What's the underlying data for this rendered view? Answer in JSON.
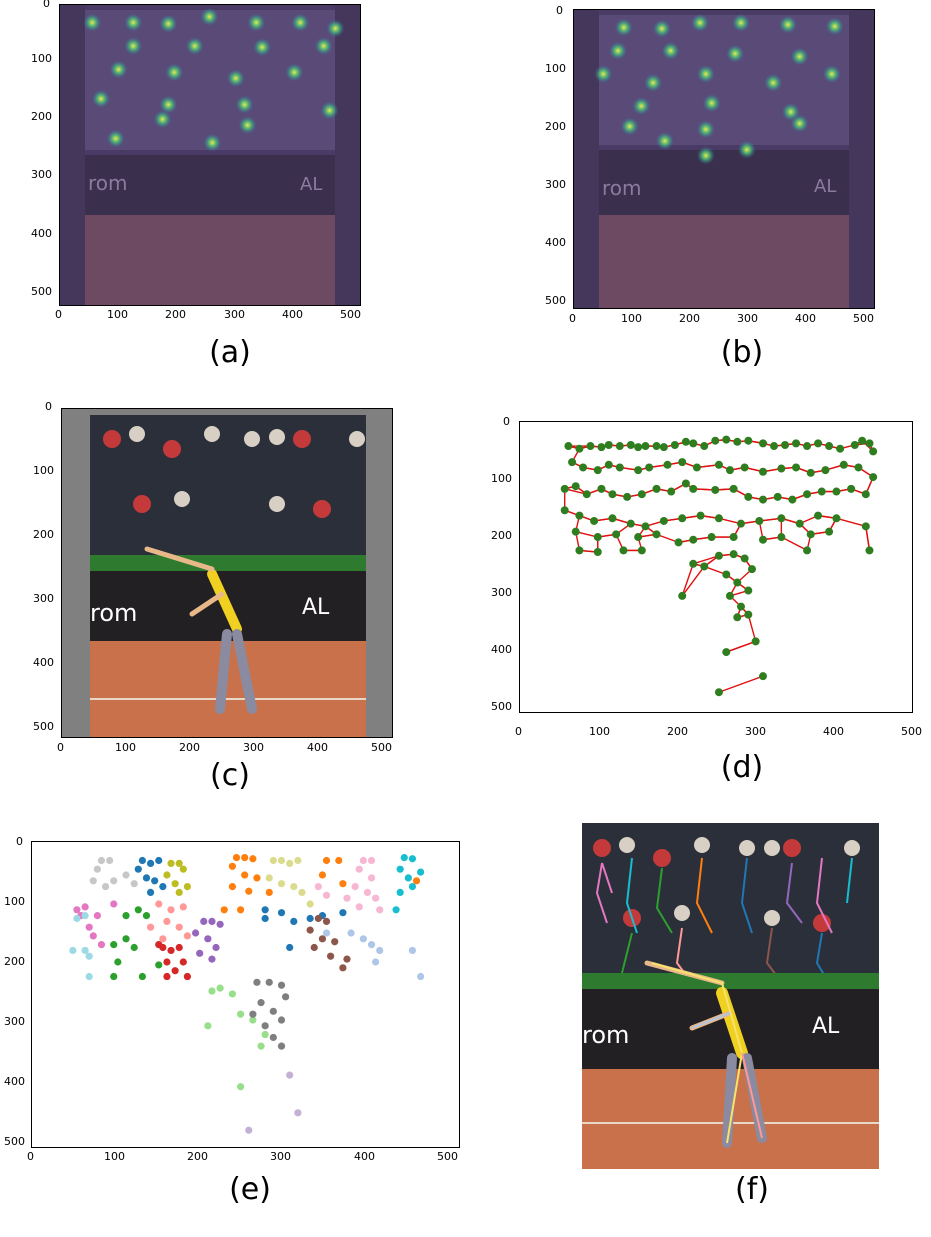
{
  "captions": [
    "(a)",
    "(b)",
    "(c)",
    "(d)",
    "(e)",
    "(f)"
  ],
  "axes": {
    "x_ticks": [
      "0",
      "100",
      "200",
      "300",
      "400",
      "500"
    ],
    "y_ticks_heatmap": [
      "0",
      "100",
      "200",
      "300",
      "400",
      "500"
    ],
    "y_ticks_plot": [
      "0",
      "100",
      "200",
      "300",
      "400",
      "500"
    ]
  },
  "image_text": {
    "banner_left": "rom",
    "banner_right": "AL"
  },
  "colors": {
    "heatmap_overlay": "#4b2a6e",
    "heat_spot": "#b8e04a",
    "keypoint": "#2e7d1f",
    "limb": "#e01010",
    "court": "#c8714a",
    "banner": "#2a2530",
    "gray_pad": "#808080"
  },
  "chart_data": [
    {
      "panel": "d",
      "type": "scatter",
      "xlim": [
        0,
        512
      ],
      "ylim": [
        512,
        0
      ],
      "points": [
        [
          55,
          30
        ],
        [
          70,
          35
        ],
        [
          85,
          30
        ],
        [
          100,
          32
        ],
        [
          110,
          28
        ],
        [
          125,
          30
        ],
        [
          140,
          28
        ],
        [
          150,
          32
        ],
        [
          160,
          30
        ],
        [
          175,
          30
        ],
        [
          185,
          32
        ],
        [
          200,
          28
        ],
        [
          215,
          22
        ],
        [
          225,
          25
        ],
        [
          240,
          30
        ],
        [
          255,
          20
        ],
        [
          270,
          18
        ],
        [
          285,
          22
        ],
        [
          300,
          20
        ],
        [
          320,
          25
        ],
        [
          335,
          30
        ],
        [
          350,
          28
        ],
        [
          365,
          25
        ],
        [
          380,
          30
        ],
        [
          395,
          25
        ],
        [
          410,
          30
        ],
        [
          425,
          35
        ],
        [
          445,
          28
        ],
        [
          455,
          20
        ],
        [
          465,
          25
        ],
        [
          470,
          40
        ],
        [
          60,
          60
        ],
        [
          75,
          70
        ],
        [
          95,
          75
        ],
        [
          110,
          65
        ],
        [
          125,
          70
        ],
        [
          150,
          75
        ],
        [
          165,
          70
        ],
        [
          190,
          65
        ],
        [
          210,
          60
        ],
        [
          230,
          70
        ],
        [
          260,
          65
        ],
        [
          275,
          75
        ],
        [
          295,
          70
        ],
        [
          320,
          78
        ],
        [
          345,
          72
        ],
        [
          365,
          70
        ],
        [
          385,
          80
        ],
        [
          405,
          75
        ],
        [
          430,
          65
        ],
        [
          450,
          70
        ],
        [
          470,
          88
        ],
        [
          50,
          110
        ],
        [
          65,
          105
        ],
        [
          80,
          120
        ],
        [
          100,
          110
        ],
        [
          115,
          120
        ],
        [
          135,
          125
        ],
        [
          155,
          120
        ],
        [
          175,
          110
        ],
        [
          195,
          115
        ],
        [
          215,
          100
        ],
        [
          225,
          110
        ],
        [
          255,
          112
        ],
        [
          280,
          110
        ],
        [
          300,
          125
        ],
        [
          320,
          130
        ],
        [
          340,
          125
        ],
        [
          360,
          130
        ],
        [
          380,
          120
        ],
        [
          400,
          115
        ],
        [
          420,
          115
        ],
        [
          440,
          110
        ],
        [
          460,
          120
        ],
        [
          50,
          150
        ],
        [
          70,
          160
        ],
        [
          90,
          170
        ],
        [
          115,
          165
        ],
        [
          140,
          175
        ],
        [
          160,
          180
        ],
        [
          185,
          170
        ],
        [
          210,
          165
        ],
        [
          235,
          160
        ],
        [
          260,
          165
        ],
        [
          290,
          175
        ],
        [
          315,
          170
        ],
        [
          345,
          165
        ],
        [
          370,
          175
        ],
        [
          395,
          160
        ],
        [
          420,
          165
        ],
        [
          460,
          180
        ],
        [
          65,
          190
        ],
        [
          95,
          200
        ],
        [
          120,
          195
        ],
        [
          150,
          200
        ],
        [
          175,
          195
        ],
        [
          205,
          210
        ],
        [
          225,
          205
        ],
        [
          250,
          200
        ],
        [
          280,
          200
        ],
        [
          320,
          205
        ],
        [
          345,
          200
        ],
        [
          385,
          195
        ],
        [
          410,
          190
        ],
        [
          70,
          225
        ],
        [
          95,
          228
        ],
        [
          130,
          225
        ],
        [
          155,
          225
        ],
        [
          380,
          225
        ],
        [
          465,
          225
        ],
        [
          260,
          235
        ],
        [
          280,
          232
        ],
        [
          295,
          240
        ],
        [
          305,
          260
        ],
        [
          270,
          270
        ],
        [
          285,
          285
        ],
        [
          300,
          300
        ],
        [
          275,
          310
        ],
        [
          290,
          330
        ],
        [
          300,
          345
        ],
        [
          285,
          350
        ],
        [
          310,
          395
        ],
        [
          270,
          415
        ],
        [
          320,
          460
        ],
        [
          260,
          490
        ],
        [
          210,
          310
        ],
        [
          240,
          255
        ],
        [
          225,
          250
        ]
      ]
    },
    {
      "panel": "e",
      "type": "scatter",
      "xlim": [
        0,
        512
      ],
      "ylim": [
        512,
        0
      ],
      "series": [
        {
          "color": "#c7c7c7",
          "points": [
            [
              80,
              25
            ],
            [
              90,
              25
            ],
            [
              75,
              40
            ],
            [
              70,
              60
            ],
            [
              85,
              70
            ],
            [
              95,
              60
            ],
            [
              110,
              50
            ],
            [
              120,
              65
            ]
          ]
        },
        {
          "color": "#1f77b4",
          "points": [
            [
              130,
              25
            ],
            [
              140,
              30
            ],
            [
              150,
              25
            ],
            [
              125,
              40
            ],
            [
              135,
              55
            ],
            [
              145,
              60
            ],
            [
              155,
              70
            ],
            [
              140,
              80
            ],
            [
              280,
              110
            ],
            [
              300,
              115
            ],
            [
              315,
              130
            ],
            [
              335,
              125
            ],
            [
              350,
              120
            ],
            [
              280,
              125
            ],
            [
              310,
              175
            ],
            [
              375,
              115
            ]
          ]
        },
        {
          "color": "#bcbd22",
          "points": [
            [
              165,
              30
            ],
            [
              175,
              30
            ],
            [
              180,
              40
            ],
            [
              160,
              50
            ],
            [
              170,
              65
            ],
            [
              185,
              70
            ],
            [
              175,
              80
            ]
          ]
        },
        {
          "color": "#ff7f0e",
          "points": [
            [
              245,
              20
            ],
            [
              255,
              20
            ],
            [
              265,
              22
            ],
            [
              240,
              35
            ],
            [
              255,
              50
            ],
            [
              270,
              55
            ],
            [
              240,
              70
            ],
            [
              260,
              78
            ],
            [
              285,
              80
            ],
            [
              250,
              110
            ],
            [
              230,
              110
            ],
            [
              355,
              25
            ],
            [
              370,
              25
            ],
            [
              350,
              50
            ],
            [
              375,
              65
            ],
            [
              465,
              60
            ]
          ]
        },
        {
          "color": "#dbdb8d",
          "points": [
            [
              290,
              25
            ],
            [
              300,
              25
            ],
            [
              310,
              30
            ],
            [
              285,
              55
            ],
            [
              300,
              65
            ],
            [
              315,
              70
            ],
            [
              325,
              80
            ],
            [
              335,
              100
            ],
            [
              320,
              25
            ]
          ]
        },
        {
          "color": "#f7b6d2",
          "points": [
            [
              400,
              25
            ],
            [
              410,
              25
            ],
            [
              395,
              40
            ],
            [
              410,
              55
            ],
            [
              390,
              70
            ],
            [
              405,
              80
            ],
            [
              415,
              90
            ],
            [
              395,
              105
            ],
            [
              420,
              110
            ],
            [
              380,
              90
            ],
            [
              355,
              85
            ],
            [
              345,
              70
            ]
          ]
        },
        {
          "color": "#17becf",
          "points": [
            [
              450,
              20
            ],
            [
              460,
              22
            ],
            [
              445,
              40
            ],
            [
              455,
              55
            ],
            [
              460,
              70
            ],
            [
              445,
              80
            ],
            [
              470,
              45
            ],
            [
              440,
              110
            ]
          ]
        },
        {
          "color": "#e377c2",
          "points": [
            [
              55,
              120
            ],
            [
              60,
              105
            ],
            [
              75,
              120
            ],
            [
              65,
              140
            ],
            [
              70,
              155
            ],
            [
              80,
              170
            ],
            [
              50,
              110
            ],
            [
              95,
              100
            ]
          ]
        },
        {
          "color": "#9edae5",
          "points": [
            [
              45,
              180
            ],
            [
              60,
              180
            ],
            [
              65,
              190
            ],
            [
              60,
              120
            ],
            [
              50,
              125
            ],
            [
              65,
              225
            ]
          ]
        },
        {
          "color": "#2ca02c",
          "points": [
            [
              95,
              170
            ],
            [
              110,
              160
            ],
            [
              120,
              175
            ],
            [
              100,
              200
            ],
            [
              95,
              225
            ],
            [
              130,
              225
            ],
            [
              150,
              205
            ],
            [
              135,
              120
            ],
            [
              110,
              120
            ],
            [
              125,
              110
            ]
          ]
        },
        {
          "color": "#ff9896",
          "points": [
            [
              150,
              100
            ],
            [
              165,
              110
            ],
            [
              180,
              105
            ],
            [
              160,
              130
            ],
            [
              175,
              140
            ],
            [
              185,
              155
            ],
            [
              140,
              140
            ],
            [
              155,
              160
            ]
          ]
        },
        {
          "color": "#d62728",
          "points": [
            [
              155,
              175
            ],
            [
              165,
              180
            ],
            [
              175,
              175
            ],
            [
              160,
              200
            ],
            [
              170,
              215
            ],
            [
              180,
              200
            ],
            [
              160,
              225
            ],
            [
              185,
              225
            ],
            [
              150,
              170
            ]
          ]
        },
        {
          "color": "#9467bd",
          "points": [
            [
              205,
              130
            ],
            [
              215,
              130
            ],
            [
              225,
              135
            ],
            [
              195,
              150
            ],
            [
              210,
              160
            ],
            [
              220,
              175
            ],
            [
              200,
              185
            ],
            [
              215,
              195
            ]
          ]
        },
        {
          "color": "#8c564b",
          "points": [
            [
              345,
              125
            ],
            [
              355,
              130
            ],
            [
              335,
              145
            ],
            [
              350,
              160
            ],
            [
              365,
              165
            ],
            [
              340,
              175
            ],
            [
              360,
              190
            ],
            [
              380,
              195
            ],
            [
              375,
              210
            ]
          ]
        },
        {
          "color": "#aec7e8",
          "points": [
            [
              355,
              150
            ],
            [
              385,
              150
            ],
            [
              400,
              160
            ],
            [
              410,
              170
            ],
            [
              420,
              180
            ],
            [
              415,
              200
            ],
            [
              460,
              180
            ],
            [
              470,
              225
            ]
          ]
        },
        {
          "color": "#98df8a",
          "points": [
            [
              225,
              245
            ],
            [
              215,
              250
            ],
            [
              240,
              255
            ],
            [
              250,
              290
            ],
            [
              265,
              300
            ],
            [
              280,
              325
            ],
            [
              300,
              345
            ],
            [
              250,
              415
            ],
            [
              275,
              345
            ],
            [
              210,
              310
            ]
          ]
        },
        {
          "color": "#7f7f7f",
          "points": [
            [
              270,
              235
            ],
            [
              285,
              235
            ],
            [
              300,
              240
            ],
            [
              305,
              260
            ],
            [
              275,
              270
            ],
            [
              290,
              285
            ],
            [
              300,
              300
            ],
            [
              280,
              310
            ],
            [
              290,
              330
            ],
            [
              300,
              345
            ],
            [
              265,
              290
            ]
          ]
        },
        {
          "color": "#c5b0d5",
          "points": [
            [
              310,
              395
            ],
            [
              320,
              460
            ],
            [
              260,
              490
            ]
          ]
        }
      ]
    }
  ]
}
